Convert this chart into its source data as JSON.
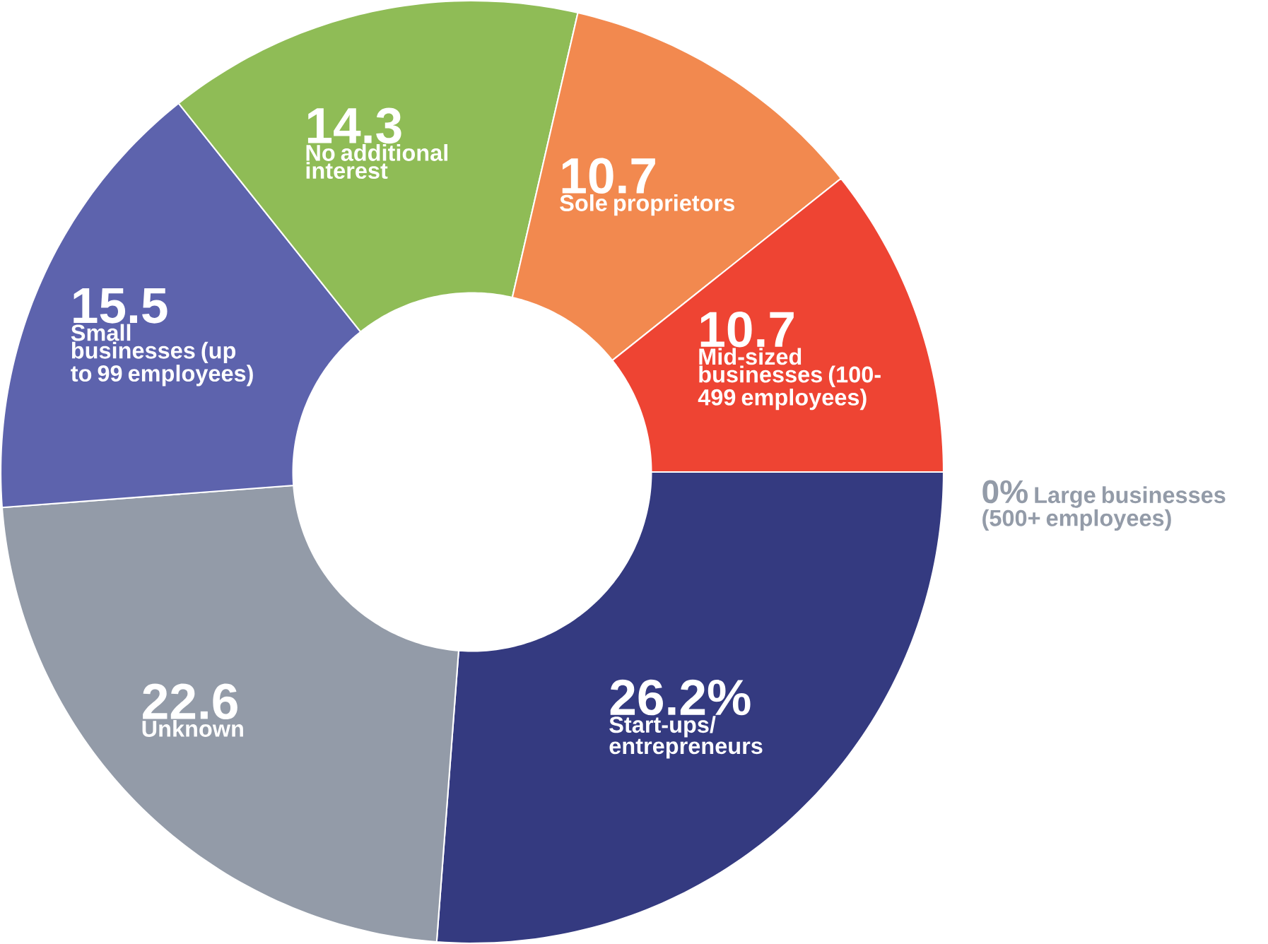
{
  "chart_data": {
    "type": "donut",
    "categories": [
      "Start-ups/ entrepreneurs",
      "Unknown",
      "Small businesses (up to 99 employees)",
      "No additional interest",
      "Sole proprietors",
      "Mid-sized businesses (100-499 employees)",
      "Large businesses (500+ employees)"
    ],
    "values": [
      26.2,
      22.6,
      15.5,
      14.3,
      10.7,
      10.7,
      0
    ],
    "value_labels": [
      "26.2%",
      "22.6",
      "15.5",
      "14.3",
      "10.7",
      "10.7",
      "0%"
    ],
    "colors": [
      "#343a80",
      "#939ba8",
      "#5d63ad",
      "#8fbc56",
      "#f2894f",
      "#ee4433",
      "#939ba8"
    ]
  }
}
